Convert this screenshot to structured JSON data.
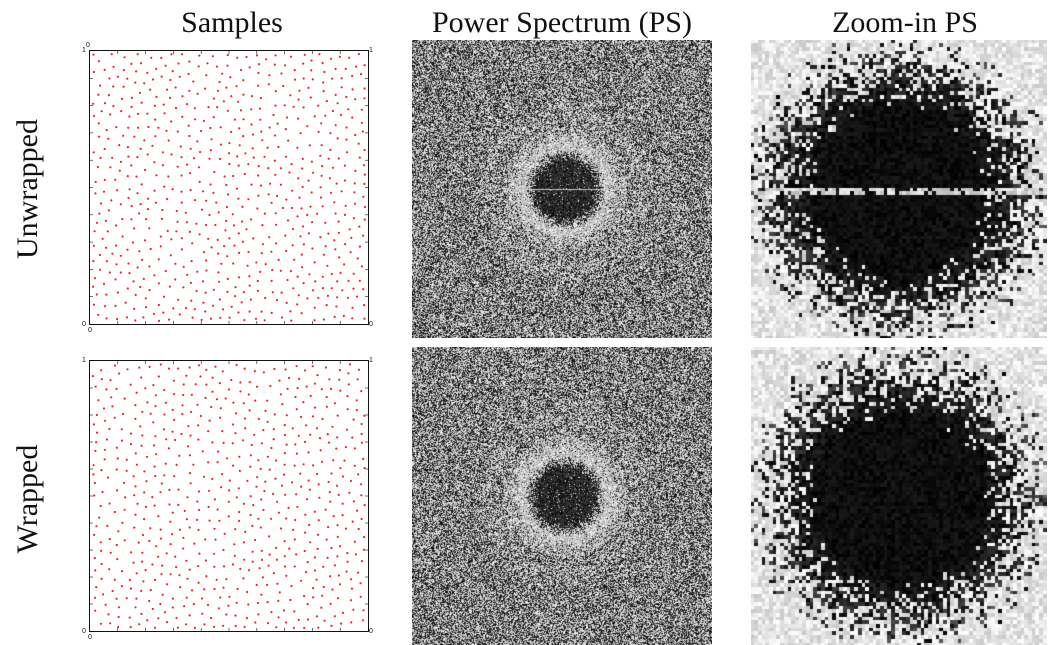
{
  "columns": {
    "samples_title": "Samples",
    "ps_title": "Power Spectrum (PS)",
    "zoom_title": "Zoom-in PS"
  },
  "rows": {
    "top_label": "Unwrapped",
    "bottom_label": "Wrapped"
  },
  "axis_ticks": {
    "zero": "0",
    "one": "1"
  },
  "colors": {
    "sample_dot": "#e8262a",
    "frame": "#111111"
  }
}
